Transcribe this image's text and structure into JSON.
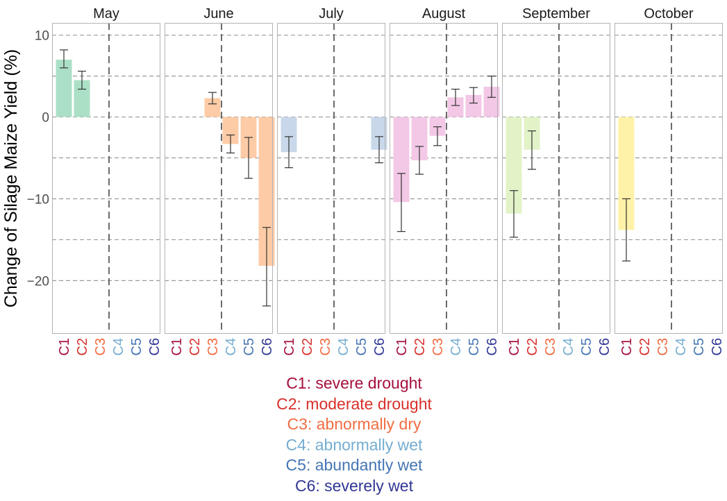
{
  "chart_data": {
    "type": "bar",
    "ylabel": "Change of Silage Maize Yield (%)",
    "xlabel": "",
    "ylim": [
      -26.5,
      11.5
    ],
    "yticks": [
      10,
      0,
      -10,
      -20
    ],
    "ytick_labels": [
      "10",
      "0",
      "−10",
      "−20"
    ],
    "grid": "horizontal dashed lines at multiples of 5",
    "divider_between_categories": [
      "C3",
      "C4"
    ],
    "categories": [
      "C1",
      "C2",
      "C3",
      "C4",
      "C5",
      "C6"
    ],
    "category_colors": [
      "#a50f3c",
      "#d7302b",
      "#f16d43",
      "#74add1",
      "#4575b4",
      "#313695"
    ],
    "panels": [
      {
        "name": "May",
        "color": "#abe0c7",
        "values": [
          7.0,
          4.5,
          null,
          null,
          null,
          null
        ],
        "err_low": [
          6.0,
          3.4,
          null,
          null,
          null,
          null
        ],
        "err_high": [
          8.2,
          5.6,
          null,
          null,
          null,
          null
        ]
      },
      {
        "name": "June",
        "color": "#fdcca6",
        "values": [
          null,
          null,
          2.3,
          -3.3,
          -5.0,
          -18.2
        ],
        "err_low": [
          null,
          null,
          1.6,
          -4.4,
          -7.5,
          -23.1
        ],
        "err_high": [
          null,
          null,
          3.0,
          -2.2,
          -2.5,
          -13.5
        ]
      },
      {
        "name": "July",
        "color": "#c8d7ea",
        "values": [
          -4.3,
          null,
          null,
          null,
          null,
          -4.0
        ],
        "err_low": [
          -6.2,
          null,
          null,
          null,
          null,
          -5.6
        ],
        "err_high": [
          -2.4,
          null,
          null,
          null,
          null,
          -2.4
        ]
      },
      {
        "name": "August",
        "color": "#f2c8e6",
        "values": [
          -10.4,
          -5.3,
          -2.3,
          2.4,
          2.7,
          3.7
        ],
        "err_low": [
          -14.0,
          -7.0,
          -3.5,
          1.4,
          1.7,
          2.4
        ],
        "err_high": [
          -6.9,
          -3.6,
          -1.2,
          3.4,
          3.6,
          5.0
        ]
      },
      {
        "name": "September",
        "color": "#e2f3c8",
        "values": [
          -11.8,
          -4.0,
          null,
          null,
          null,
          null
        ],
        "err_low": [
          -14.7,
          -6.4,
          null,
          null,
          null,
          null
        ],
        "err_high": [
          -9.0,
          -1.7,
          null,
          null,
          null,
          null
        ]
      },
      {
        "name": "October",
        "color": "#fef1a8",
        "values": [
          -13.8,
          null,
          null,
          null,
          null,
          null
        ],
        "err_low": [
          -17.6,
          null,
          null,
          null,
          null,
          null
        ],
        "err_high": [
          -10.0,
          null,
          null,
          null,
          null,
          null
        ]
      }
    ]
  },
  "legend": [
    {
      "label": "C1: severe drought",
      "color": "#a50f3c"
    },
    {
      "label": "C2: moderate drought",
      "color": "#d7302b"
    },
    {
      "label": "C3: abnormally dry",
      "color": "#f16d43"
    },
    {
      "label": "C4: abnormally wet",
      "color": "#74add1"
    },
    {
      "label": "C5: abundantly wet",
      "color": "#4575b4"
    },
    {
      "label": "C6: severely wet",
      "color": "#313695"
    }
  ]
}
